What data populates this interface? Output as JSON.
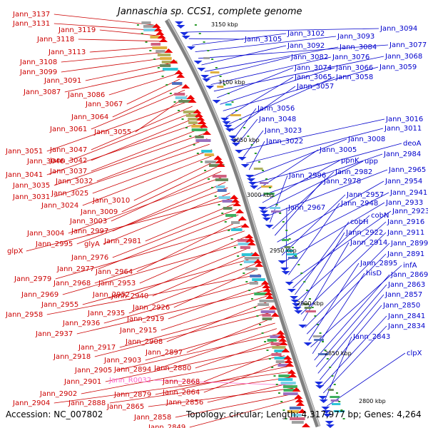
{
  "title": "Jannaschia sp. CCS1, complete genome",
  "accession": "Accession: NC_007802",
  "topology": "Topology: circular; Length: 4,317,977 bp; Genes: 4,264",
  "colors": {
    "forward": "#cc0000",
    "reverse": "#0000cc",
    "rna": "#ff66cc",
    "backbone": "#808080"
  },
  "kbp_labels": [
    "3150 kbp",
    "3100 kbp",
    "3050 kbp",
    "3000 kbp",
    "2950 kbp",
    "2900 kbp",
    "2850 kbp",
    "2800 kbp"
  ],
  "forward_genes": [
    "Jann_3137",
    "Jann_3131",
    "Jann_3119",
    "Jann_3118",
    "Jann_3113",
    "Jann_3108",
    "Jann_3099",
    "Jann_3091",
    "Jann_3087",
    "Jann_3086",
    "Jann_3067",
    "Jann_3064",
    "Jann_3061",
    "Jann_3055",
    "Jann_3051",
    "Jann_3047",
    "Jann_3046",
    "Jann_3042",
    "Jann_3041",
    "Jann_3037",
    "Jann_3035",
    "Jann_3032",
    "Jann_3031",
    "Jann_3025",
    "Jann_3024",
    "Jann_3010",
    "Jann_3009",
    "Jann_3003",
    "Jann_3004",
    "Jann_2997",
    "Jann_2995",
    "glyA",
    "glpX",
    "Jann_2981",
    "Jann_2976",
    "Jann_2977",
    "Jann_2964",
    "Jann_2979",
    "Jann_2968",
    "Jann_2953",
    "Jann_2969",
    "Jann_2952",
    "Jann_2940",
    "Jann_2955",
    "Jann_2935",
    "Jann_2926",
    "Jann_2958",
    "Jann_2936",
    "Jann_2919",
    "Jann_2937",
    "Jann_2915",
    "Jann_2908",
    "Jann_2917",
    "Jann_2918",
    "Jann_2897",
    "Jann_2903",
    "Jann_2894",
    "Jann_2905",
    "Jann_2880",
    "Jann_2901",
    "Jann_2868",
    "Jann_2902",
    "Jann_2864",
    "Jann_2879",
    "Jann_2904",
    "Jann_2888",
    "Jann_2856",
    "Jann_2865",
    "Jann_2858",
    "Jann_2849"
  ],
  "rna_genes": [
    "Jann_R0032"
  ],
  "reverse_genes": [
    "Jann_3094",
    "Jann_3105",
    "Jann_3102",
    "Jann_3093",
    "Jann_3077",
    "Jann_3092",
    "Jann_3084",
    "Jann_3082",
    "Jann_3076",
    "Jann_3068",
    "Jann_3074",
    "Jann_3066",
    "Jann_3059",
    "Jann_3065",
    "Jann_3058",
    "Jann_3057",
    "Jann_3056",
    "Jann_3048",
    "Jann_3016",
    "Jann_3023",
    "Jann_3011",
    "Jann_3022",
    "Jann_3008",
    "deoA",
    "Jann_3005",
    "Jann_2984",
    "ppnK",
    "upp",
    "Jann_2965",
    "Jann_2996",
    "Jann_2982",
    "Jann_2978",
    "Jann_2954",
    "Jann_2941",
    "Jann_2957",
    "Jann_2933",
    "Jann_2967",
    "Jann_2948",
    "Jann_2923",
    "cobN",
    "cobH",
    "Jann_2916",
    "Jann_2922",
    "Jann_2911",
    "Jann_2914",
    "Jann_2899",
    "Jann_2891",
    "Jann_2895",
    "infA",
    "hisD",
    "Jann_2869",
    "Jann_2863",
    "Jann_2857",
    "Jann_2850",
    "Jann_2841",
    "Jann_2834",
    "Jann_2843",
    "clpX"
  ]
}
